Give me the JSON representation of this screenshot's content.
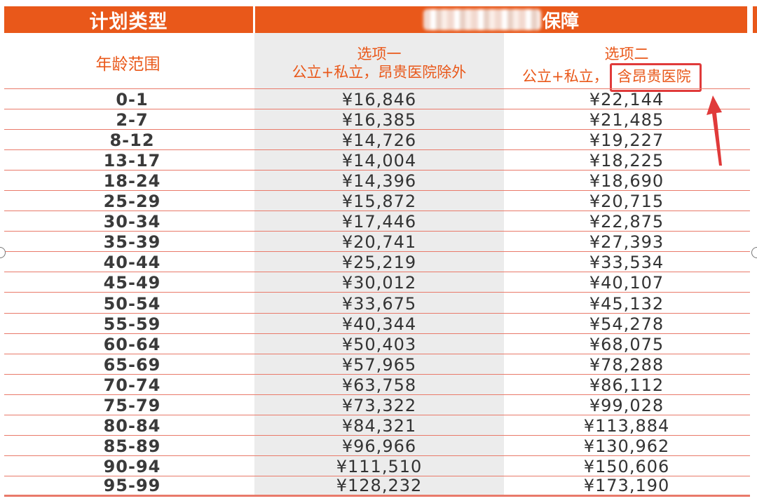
{
  "header": {
    "plan_type": "计划类型",
    "coverage": "保障"
  },
  "subheader": {
    "age_range": "年龄范围",
    "option1_title": "选项一",
    "option1_desc": "公立+私立，昂贵医院除外",
    "option2_title": "选项二",
    "option2_prefix": "公立+私立，",
    "option2_highlight": "含昂贵医院"
  },
  "rows": [
    {
      "age": "0-1",
      "opt1": "¥16,846",
      "opt2": "¥22,144"
    },
    {
      "age": "2-7",
      "opt1": "¥16,385",
      "opt2": "¥21,485"
    },
    {
      "age": "8-12",
      "opt1": "¥14,726",
      "opt2": "¥19,227"
    },
    {
      "age": "13-17",
      "opt1": "¥14,004",
      "opt2": "¥18,225"
    },
    {
      "age": "18-24",
      "opt1": "¥14,396",
      "opt2": "¥18,690"
    },
    {
      "age": "25-29",
      "opt1": "¥15,872",
      "opt2": "¥20,715"
    },
    {
      "age": "30-34",
      "opt1": "¥17,446",
      "opt2": "¥22,875"
    },
    {
      "age": "35-39",
      "opt1": "¥20,741",
      "opt2": "¥27,393"
    },
    {
      "age": "40-44",
      "opt1": "¥25,219",
      "opt2": "¥33,534"
    },
    {
      "age": "45-49",
      "opt1": "¥30,012",
      "opt2": "¥40,107"
    },
    {
      "age": "50-54",
      "opt1": "¥33,675",
      "opt2": "¥45,132"
    },
    {
      "age": "55-59",
      "opt1": "¥40,344",
      "opt2": "¥54,278"
    },
    {
      "age": "60-64",
      "opt1": "¥50,403",
      "opt2": "¥68,075"
    },
    {
      "age": "65-69",
      "opt1": "¥57,965",
      "opt2": "¥78,288"
    },
    {
      "age": "70-74",
      "opt1": "¥63,758",
      "opt2": "¥86,112"
    },
    {
      "age": "75-79",
      "opt1": "¥73,322",
      "opt2": "¥99,028"
    },
    {
      "age": "80-84",
      "opt1": "¥84,321",
      "opt2": "¥113,884"
    },
    {
      "age": "85-89",
      "opt1": "¥96,966",
      "opt2": "¥130,962"
    },
    {
      "age": "90-94",
      "opt1": "¥111,510",
      "opt2": "¥150,606"
    },
    {
      "age": "95-99",
      "opt1": "¥128,232",
      "opt2": "¥173,190"
    }
  ],
  "colors": {
    "header_bg": "#e9581a",
    "accent_text": "#e9581a",
    "highlight_border": "#e03a3a",
    "row_line": "#e97a6a",
    "option1_bg": "#ececec"
  },
  "icons": {
    "annotation_arrow": "up-arrow-icon",
    "blurred_region": "redacted-blur"
  }
}
